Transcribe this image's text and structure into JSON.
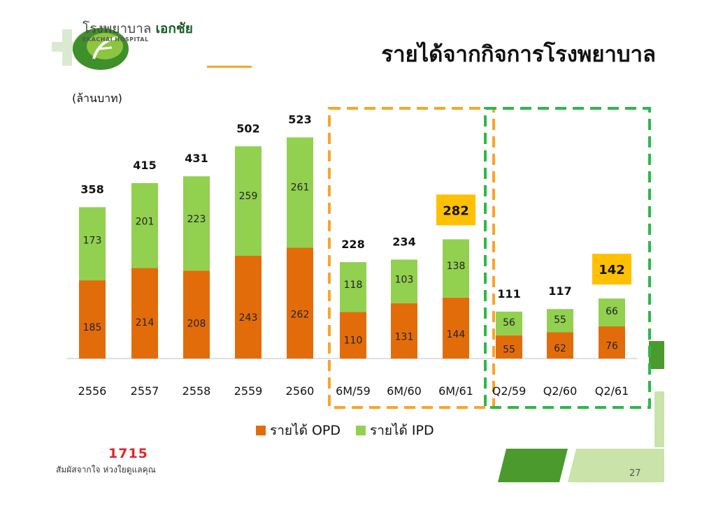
{
  "logo": {
    "name_th_prefix": "โรงพยาบาล",
    "name_th_brand": "เอกชัย",
    "name_en": "EKACHAI HOSPITAL"
  },
  "title": "รายได้จากกิจการโรงพยาบาล",
  "unit_label": "(ล้านบาท)",
  "colors": {
    "opd": "#e36c0a",
    "ipd": "#92d050",
    "highlight": "#ffc000",
    "box_6m": "#f7a529",
    "box_q2": "#2db84a",
    "brand_green": "#4a9a2e"
  },
  "chart_data": {
    "type": "bar",
    "stacked": true,
    "categories": [
      "2556",
      "2557",
      "2558",
      "2559",
      "2560",
      "6M/59",
      "6M/60",
      "6M/61",
      "Q2/59",
      "Q2/60",
      "Q2/61"
    ],
    "series": [
      {
        "name": "รายได้ OPD",
        "values": [
          185,
          214,
          208,
          243,
          262,
          110,
          131,
          144,
          55,
          62,
          76
        ]
      },
      {
        "name": "รายได้ IPD",
        "values": [
          173,
          201,
          223,
          259,
          261,
          118,
          103,
          138,
          56,
          55,
          66
        ]
      }
    ],
    "totals": [
      358,
      415,
      431,
      502,
      523,
      228,
      234,
      282,
      111,
      117,
      142
    ],
    "highlighted_totals": [
      "6M/61",
      "Q2/61"
    ],
    "groups": [
      {
        "categories": [
          "6M/59",
          "6M/60",
          "6M/61"
        ],
        "style": "dashed-orange"
      },
      {
        "categories": [
          "Q2/59",
          "Q2/60",
          "Q2/61"
        ],
        "style": "dashed-green"
      }
    ],
    "legend_position": "bottom"
  },
  "footer": {
    "logo_text": "1715",
    "slogan": "สัมผัสจากใจ ห่วงใยดูแลคุณ",
    "page_number": "27"
  }
}
